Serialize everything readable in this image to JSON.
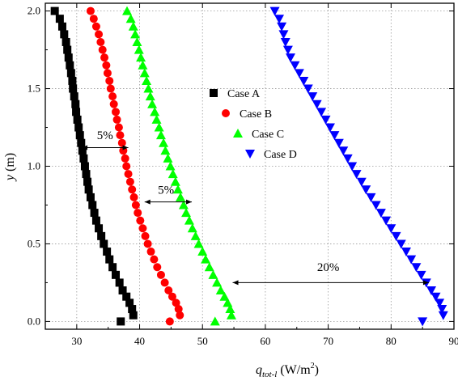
{
  "chart_data": {
    "type": "scatter",
    "xlabel_main": "q",
    "xlabel_sub": "tot-l",
    "xlabel_units": " (W/m",
    "xlabel_sup": "2",
    "xlabel_close": ")",
    "ylabel": "y",
    "ylabel_units": " (m)",
    "xlim": [
      25,
      90
    ],
    "ylim": [
      -0.05,
      2.05
    ],
    "xticks": [
      "30",
      "40",
      "50",
      "60",
      "70",
      "80",
      "90"
    ],
    "yticks": [
      "0.0",
      "0.5",
      "1.0",
      "1.5",
      "2.0"
    ],
    "grid": true,
    "legend_position": "center",
    "series": [
      {
        "name": "Case A",
        "marker": "square",
        "color": "#000000",
        "y": [
          0.0,
          0.04,
          0.08,
          0.12,
          0.16,
          0.2,
          0.25,
          0.3,
          0.35,
          0.4,
          0.45,
          0.5,
          0.55,
          0.6,
          0.65,
          0.7,
          0.75,
          0.8,
          0.85,
          0.9,
          0.95,
          1.0,
          1.05,
          1.1,
          1.15,
          1.2,
          1.25,
          1.3,
          1.35,
          1.4,
          1.45,
          1.5,
          1.55,
          1.6,
          1.65,
          1.7,
          1.75,
          1.8,
          1.85,
          1.9,
          1.95,
          2.0
        ],
        "x": [
          37.0,
          39.0,
          38.8,
          38.4,
          37.9,
          37.3,
          36.8,
          36.2,
          35.7,
          35.2,
          34.8,
          34.3,
          33.9,
          33.5,
          33.1,
          32.8,
          32.5,
          32.2,
          31.9,
          31.7,
          31.5,
          31.3,
          31.1,
          30.9,
          30.7,
          30.5,
          30.3,
          30.1,
          29.9,
          29.8,
          29.6,
          29.4,
          29.3,
          29.1,
          28.9,
          28.7,
          28.5,
          28.3,
          28.0,
          27.7,
          27.3,
          26.5
        ]
      },
      {
        "name": "Case B",
        "marker": "circle",
        "color": "#ff0000",
        "y": [
          0.0,
          0.04,
          0.08,
          0.12,
          0.16,
          0.2,
          0.25,
          0.3,
          0.35,
          0.4,
          0.45,
          0.5,
          0.55,
          0.6,
          0.65,
          0.7,
          0.75,
          0.8,
          0.85,
          0.9,
          0.95,
          1.0,
          1.05,
          1.1,
          1.15,
          1.2,
          1.25,
          1.3,
          1.35,
          1.4,
          1.45,
          1.5,
          1.55,
          1.6,
          1.65,
          1.7,
          1.75,
          1.8,
          1.85,
          1.9,
          1.95,
          2.0
        ],
        "x": [
          44.8,
          46.4,
          46.2,
          45.8,
          45.2,
          44.6,
          44.0,
          43.4,
          42.8,
          42.3,
          41.8,
          41.3,
          40.9,
          40.5,
          40.1,
          39.7,
          39.4,
          39.1,
          38.8,
          38.5,
          38.2,
          37.9,
          37.7,
          37.4,
          37.2,
          36.9,
          36.7,
          36.4,
          36.2,
          35.9,
          35.7,
          35.4,
          35.2,
          34.9,
          34.7,
          34.4,
          34.1,
          33.8,
          33.5,
          33.1,
          32.7,
          32.2
        ]
      },
      {
        "name": "Case C",
        "marker": "triangle-up",
        "color": "#00ff00",
        "y": [
          0.0,
          0.04,
          0.08,
          0.12,
          0.16,
          0.2,
          0.25,
          0.3,
          0.35,
          0.4,
          0.45,
          0.5,
          0.55,
          0.6,
          0.65,
          0.7,
          0.75,
          0.8,
          0.85,
          0.9,
          0.95,
          1.0,
          1.05,
          1.1,
          1.15,
          1.2,
          1.25,
          1.3,
          1.35,
          1.4,
          1.45,
          1.5,
          1.55,
          1.6,
          1.65,
          1.7,
          1.75,
          1.8,
          1.85,
          1.9,
          1.95,
          2.0
        ],
        "x": [
          52.0,
          54.6,
          54.4,
          54.0,
          53.5,
          52.9,
          52.3,
          51.7,
          51.1,
          50.5,
          50.0,
          49.4,
          48.9,
          48.4,
          47.9,
          47.4,
          47.0,
          46.5,
          46.1,
          45.7,
          45.3,
          44.9,
          44.5,
          44.1,
          43.8,
          43.4,
          43.1,
          42.7,
          42.4,
          42.0,
          41.7,
          41.4,
          41.1,
          40.8,
          40.5,
          40.2,
          39.9,
          39.6,
          39.3,
          39.0,
          38.6,
          38.0
        ]
      },
      {
        "name": "Case D",
        "marker": "triangle-down",
        "color": "#0000ff",
        "y": [
          0.0,
          0.04,
          0.08,
          0.12,
          0.16,
          0.2,
          0.25,
          0.3,
          0.35,
          0.4,
          0.45,
          0.5,
          0.55,
          0.6,
          0.65,
          0.7,
          0.75,
          0.8,
          0.85,
          0.9,
          0.95,
          1.0,
          1.05,
          1.1,
          1.15,
          1.2,
          1.25,
          1.3,
          1.35,
          1.4,
          1.45,
          1.5,
          1.55,
          1.6,
          1.65,
          1.7,
          1.75,
          1.8,
          1.85,
          1.9,
          1.95,
          2.0
        ],
        "x": [
          85.0,
          88.3,
          88.1,
          87.7,
          87.1,
          86.4,
          85.6,
          84.8,
          84.0,
          83.2,
          82.4,
          81.6,
          80.8,
          80.0,
          79.2,
          78.4,
          77.6,
          76.8,
          76.0,
          75.3,
          74.5,
          73.8,
          73.1,
          72.4,
          71.7,
          71.0,
          70.3,
          69.6,
          68.9,
          68.2,
          67.5,
          66.8,
          66.1,
          65.4,
          64.7,
          64.0,
          63.6,
          63.2,
          62.9,
          62.6,
          62.2,
          61.5
        ]
      }
    ],
    "annotations": [
      {
        "label": "5%",
        "x_start": 30.8,
        "x_end": 38.2,
        "y": 1.12,
        "label_x": 34.5,
        "label_y": 1.2
      },
      {
        "label": "5%",
        "x_start": 40.8,
        "x_end": 48.3,
        "y": 0.77,
        "label_x": 44.2,
        "label_y": 0.85
      },
      {
        "label": "20%",
        "x_start": 54.8,
        "x_end": 86.0,
        "y": 0.25,
        "label_x": 70.0,
        "label_y": 0.35
      }
    ]
  }
}
